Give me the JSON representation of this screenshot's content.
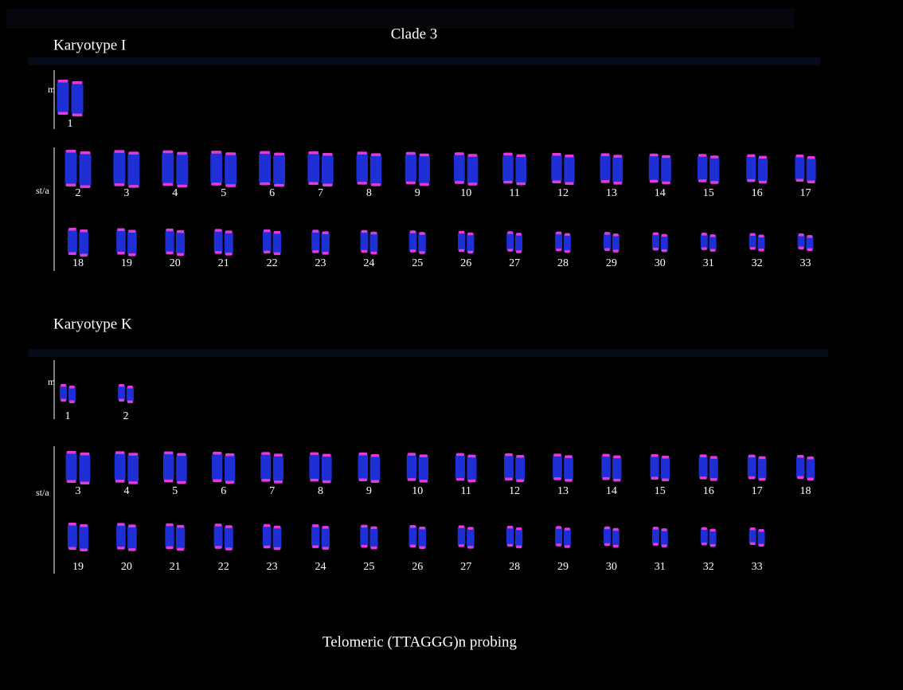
{
  "title": "Clade 3",
  "caption": "Telomeric (TTAGGG)n probing",
  "karyotypes": [
    {
      "name": "Karyotype I",
      "groups": [
        {
          "label": "m",
          "rows": [
            [
              1
            ]
          ]
        },
        {
          "label": "st/a",
          "rows": [
            [
              2,
              3,
              4,
              5,
              6,
              7,
              8,
              9,
              10,
              11,
              12,
              13,
              14,
              15,
              16,
              17
            ],
            [
              18,
              19,
              20,
              21,
              22,
              23,
              24,
              25,
              26,
              27,
              28,
              29,
              30,
              31,
              32,
              33
            ]
          ]
        }
      ]
    },
    {
      "name": "Karyotype K",
      "groups": [
        {
          "label": "m",
          "rows": [
            [
              1,
              2
            ]
          ]
        },
        {
          "label": "st/a",
          "rows": [
            [
              3,
              4,
              5,
              6,
              7,
              8,
              9,
              10,
              11,
              12,
              13,
              14,
              15,
              16,
              17,
              18
            ],
            [
              19,
              20,
              21,
              22,
              23,
              24,
              25,
              26,
              27,
              28,
              29,
              30,
              31,
              32,
              33
            ]
          ]
        }
      ]
    }
  ]
}
